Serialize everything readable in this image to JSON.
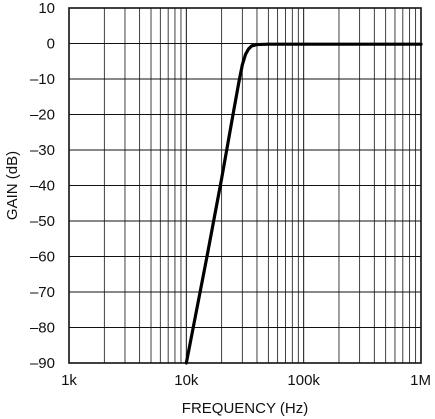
{
  "chart_data": {
    "type": "line",
    "title": "",
    "xlabel": "FREQUENCY (Hz)",
    "ylabel": "GAIN (dB)",
    "xscale": "log",
    "xlim": [
      1000,
      1000000
    ],
    "ylim": [
      -90,
      10
    ],
    "grid": true,
    "x_tick_values": [
      1000,
      10000,
      100000,
      1000000
    ],
    "x_tick_labels": [
      "1k",
      "10k",
      "100k",
      "1M"
    ],
    "y_tick_values": [
      10,
      0,
      -10,
      -20,
      -30,
      -40,
      -50,
      -60,
      -70,
      -80,
      -90
    ],
    "y_tick_labels": [
      "10",
      "0",
      "–10",
      "–20",
      "–30",
      "–40",
      "–50",
      "–60",
      "–70",
      "–80",
      "–90"
    ],
    "series": [
      {
        "color": "#000000",
        "x": [
          10000,
          15000,
          20000,
          25000,
          28000,
          30000,
          32000,
          34000,
          36000,
          40000,
          50000,
          100000,
          1000000
        ],
        "y": [
          -90,
          -60,
          -38,
          -20,
          -11,
          -6,
          -3,
          -1.5,
          -0.7,
          -0.3,
          -0.2,
          -0.2,
          -0.2
        ]
      }
    ]
  }
}
